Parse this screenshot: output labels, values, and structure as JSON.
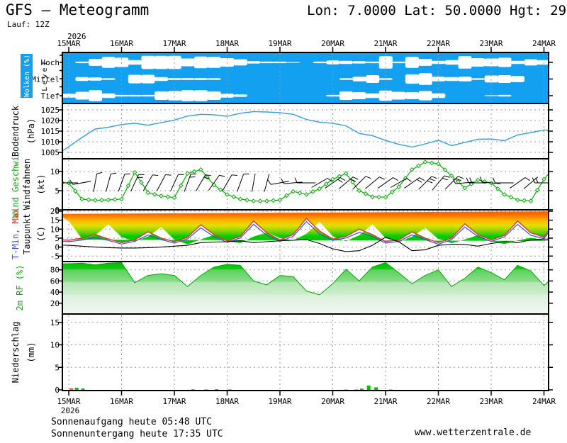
{
  "header": {
    "title": "GFS – Meteogramm",
    "coords": "Lon: 7.0000 Lat: 50.0000 Hgt: 29",
    "run_label": "Lauf: 12Z"
  },
  "footer": {
    "sunrise": "Sonnenaufgang heute 05:48 UTC",
    "sunset": "Sonnenuntergang heute 17:35 UTC",
    "website": "www.wetterzentrale.de"
  },
  "colors": {
    "cloud_blue": "#14a0f0",
    "pressure_line": "#2e9ee8",
    "wind_green": "#00b400",
    "temp_max": "#e63232",
    "temp_min": "#3c50e6",
    "dew_black": "#000000",
    "rf_green": "#00c800",
    "precip_rain": "#00c000",
    "precip_shower": "#ff5a3c",
    "grid_gray": "#9a9a9a"
  },
  "chart_data": {
    "type": "area",
    "title": "GFS Meteogramm Lon 7.0 Lat 50.0",
    "x_axis": {
      "year_top": "2026",
      "year_bottom": "2026",
      "days": [
        "15MAR",
        "16MAR",
        "17MAR",
        "18MAR",
        "19MAR",
        "20MAR",
        "21MAR",
        "22MAR",
        "23MAR",
        "24MAR"
      ],
      "series_start_day": -0.25,
      "series_step_days": 0.25
    },
    "clouds": {
      "label": "Wolken (%)",
      "axis_label": "Level",
      "levels": [
        "Hoch",
        "Mittel",
        "Tief"
      ],
      "start_day": 0,
      "step_days": 0.25,
      "hoch": [
        0,
        10,
        45,
        70,
        60,
        30,
        85,
        85,
        85,
        50,
        75,
        70,
        55,
        40,
        15,
        10,
        10,
        5,
        0,
        10,
        25,
        20,
        15,
        10,
        80,
        10,
        70,
        45,
        20,
        30,
        80,
        55,
        50,
        60,
        20,
        40,
        30,
        50
      ],
      "mittel": [
        0,
        25,
        20,
        10,
        0,
        55,
        55,
        25,
        12,
        12,
        12,
        10,
        0,
        0,
        0,
        0,
        0,
        0,
        0,
        0,
        0,
        10,
        30,
        50,
        10,
        0,
        60,
        75,
        30,
        25,
        30,
        10,
        45,
        50,
        40,
        0,
        0,
        10
      ],
      "tief": [
        25,
        50,
        70,
        30,
        10,
        10,
        10,
        55,
        60,
        70,
        70,
        55,
        25,
        15,
        0,
        0,
        0,
        0,
        0,
        0,
        10,
        55,
        45,
        30,
        65,
        50,
        45,
        60,
        30,
        0,
        0,
        0,
        5,
        10,
        0,
        0,
        0,
        15
      ]
    },
    "pressure": {
      "label": "Bodendruck",
      "unit": "(hPa)",
      "yticks": [
        1005,
        1010,
        1015,
        1020,
        1025
      ],
      "ylim": [
        1002,
        1028
      ],
      "values": [
        1003.5,
        1007.7,
        1012,
        1016,
        1016.8,
        1018.1,
        1018.7,
        1017.8,
        1019,
        1020.2,
        1022.1,
        1022.9,
        1022.7,
        1022,
        1023.4,
        1024.2,
        1024,
        1023.7,
        1022.9,
        1020.5,
        1019.2,
        1018.7,
        1017.5,
        1013.9,
        1012.9,
        1010.6,
        1008.8,
        1007.5,
        1009,
        1010.7,
        1008.2,
        1009.7,
        1011.2,
        1011.3,
        1010.5,
        1013.2,
        1014.3,
        1015.5,
        1015.1,
        1014.8
      ]
    },
    "wind": {
      "label": "Wind Geschwi.",
      "label2": "Windfahnen",
      "unit": "(kt)",
      "yticks": [
        0,
        5,
        10
      ],
      "ylim": [
        0,
        13.3
      ],
      "speed": [
        7.2,
        7.0,
        2.8,
        2.5,
        2.6,
        2.8,
        9.8,
        4.5,
        3.6,
        3.2,
        9.5,
        10.5,
        6.5,
        4.0,
        2.8,
        2.3,
        2.3,
        2.6,
        4.8,
        4.0,
        5.5,
        8.0,
        9.5,
        5.0,
        3.4,
        3.3,
        6.0,
        10.5,
        12.5,
        12.0,
        8.9,
        5.7,
        7.8,
        7.0,
        4.0,
        2.6,
        2.3,
        8.0,
        12.0,
        12.0
      ],
      "barb_angles": [
        180,
        170,
        -80,
        -75,
        -70,
        -65,
        -60,
        -62,
        -65,
        -70,
        -60,
        -55,
        -60,
        -70,
        -80,
        -75,
        170,
        175,
        180,
        -30,
        -35,
        -40,
        -45,
        -40,
        -35,
        -30,
        -35,
        -45,
        -50,
        -45,
        175,
        180,
        185,
        180,
        -35,
        -40,
        180
      ]
    },
    "temp": {
      "label_min": "T-Min,",
      "label_max": " Max",
      "label2": "Taupunkt",
      "unit": "(C)",
      "yticks": [
        -5,
        0,
        5,
        10,
        15,
        20
      ],
      "ylim": [
        -8,
        20.8
      ],
      "tmax": [
        4.2,
        3.8,
        5.0,
        7.0,
        4.5,
        2.5,
        4.0,
        8.5,
        5.0,
        3.0,
        5.5,
        12.5,
        7.0,
        3.5,
        6.0,
        14.5,
        8.0,
        4.0,
        7.0,
        16.0,
        9.0,
        4.5,
        6.0,
        10.0,
        7.0,
        3.0,
        4.0,
        8.5,
        5.0,
        2.5,
        5.0,
        13.0,
        7.0,
        4.0,
        6.5,
        14.5,
        8.0,
        5.5,
        16.0,
        20.0
      ],
      "tmin": [
        3.4,
        3.0,
        3.9,
        5.2,
        3.7,
        1.7,
        3.2,
        6.7,
        4.2,
        2.2,
        4.6,
        10.7,
        5.8,
        2.7,
        5.1,
        12.7,
        6.6,
        3.2,
        6.0,
        14.2,
        7.4,
        3.7,
        5.1,
        8.2,
        5.9,
        2.2,
        3.2,
        6.8,
        4.2,
        1.6,
        4.2,
        11.2,
        5.9,
        3.2,
        5.6,
        12.7,
        6.6,
        4.7,
        14.5,
        18.5
      ],
      "dew": [
        1.2,
        1.0,
        0.5,
        0.0,
        -0.3,
        -0.5,
        -0.5,
        -0.3,
        0.0,
        0.5,
        1.0,
        2.5,
        2.8,
        3.0,
        3.5,
        2.5,
        3.0,
        3.5,
        3.8,
        4.2,
        2.0,
        -1.0,
        -2.5,
        -2.0,
        1.0,
        5.5,
        3.0,
        -2.0,
        -1.5,
        1.0,
        1.5,
        1.5,
        0.5,
        2.0,
        3.0,
        2.5,
        4.0,
        4.5,
        4.2,
        4.0
      ]
    },
    "rf": {
      "label": "2m RF (%)",
      "yticks": [
        20,
        40,
        60,
        80
      ],
      "ylim": [
        0,
        96
      ],
      "values": [
        91,
        91,
        92,
        89,
        92,
        93,
        57,
        70,
        73,
        70,
        50,
        70,
        85,
        90,
        88,
        60,
        53,
        70,
        68,
        42,
        35,
        55,
        81,
        60,
        85,
        93,
        75,
        55,
        70,
        80,
        50,
        65,
        85,
        75,
        62,
        88,
        78,
        52,
        72,
        58
      ]
    },
    "precip": {
      "label": "Niederschlag",
      "unit": "(mm)",
      "yticks": [
        0,
        5,
        10,
        15
      ],
      "ylim": [
        0,
        16.9
      ],
      "bars": [
        {
          "day": 0.05,
          "mm": 0.35,
          "type": "shower"
        },
        {
          "day": 0.15,
          "mm": 0.45,
          "type": "rain"
        },
        {
          "day": 0.27,
          "mm": 0.3,
          "type": "rain"
        },
        {
          "day": 2.35,
          "mm": 0.12,
          "type": "shower"
        },
        {
          "day": 2.6,
          "mm": 0.1,
          "type": "shower"
        },
        {
          "day": 2.8,
          "mm": 0.15,
          "type": "shower"
        },
        {
          "day": 3.05,
          "mm": 0.1,
          "type": "shower"
        },
        {
          "day": 5.25,
          "mm": 0.08,
          "type": "shower"
        },
        {
          "day": 5.45,
          "mm": 0.1,
          "type": "shower"
        },
        {
          "day": 5.55,
          "mm": 0.25,
          "type": "rain"
        },
        {
          "day": 5.68,
          "mm": 0.95,
          "type": "rain"
        },
        {
          "day": 5.82,
          "mm": 0.55,
          "type": "rain"
        },
        {
          "day": 6.1,
          "mm": 0.08,
          "type": "shower"
        }
      ]
    }
  }
}
